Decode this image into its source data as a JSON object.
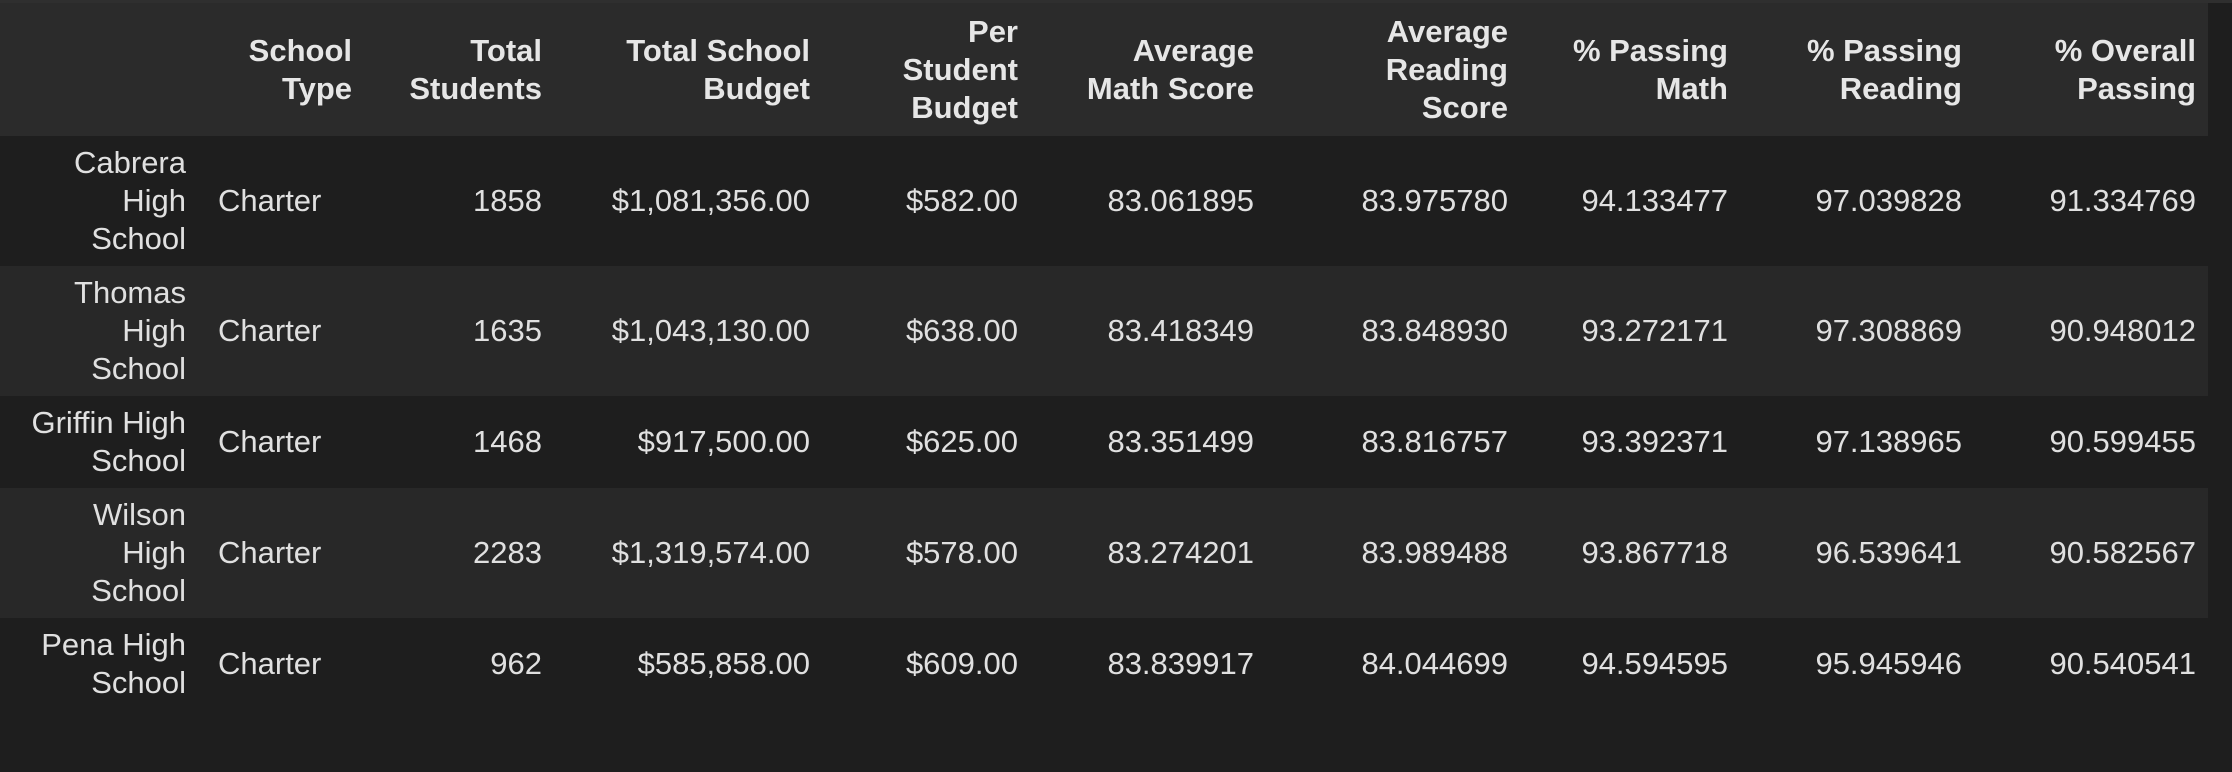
{
  "table": {
    "columns": [
      "",
      "School Type",
      "Total Students",
      "Total School Budget",
      "Per Student Budget",
      "Average Math Score",
      "Average Reading Score",
      "% Passing Math",
      "% Passing Reading",
      "% Overall Passing"
    ],
    "column_header_lines": [
      [
        ""
      ],
      [
        "School",
        "Type"
      ],
      [
        "Total",
        "Students"
      ],
      [
        "Total School",
        "Budget"
      ],
      [
        "Per",
        "Student",
        "Budget"
      ],
      [
        "Average",
        "Math Score"
      ],
      [
        "Average",
        "Reading",
        "Score"
      ],
      [
        "% Passing",
        "Math"
      ],
      [
        "% Passing",
        "Reading"
      ],
      [
        "% Overall",
        "Passing"
      ]
    ],
    "rows": [
      {
        "index_lines": [
          "Cabrera",
          "High",
          "School"
        ],
        "cells": [
          "Charter",
          "1858",
          "$1,081,356.00",
          "$582.00",
          "83.061895",
          "83.975780",
          "94.133477",
          "97.039828",
          "91.334769"
        ]
      },
      {
        "index_lines": [
          "Thomas",
          "High",
          "School"
        ],
        "cells": [
          "Charter",
          "1635",
          "$1,043,130.00",
          "$638.00",
          "83.418349",
          "83.848930",
          "93.272171",
          "97.308869",
          "90.948012"
        ]
      },
      {
        "index_lines": [
          "Griffin High",
          "School"
        ],
        "cells": [
          "Charter",
          "1468",
          "$917,500.00",
          "$625.00",
          "83.351499",
          "83.816757",
          "93.392371",
          "97.138965",
          "90.599455"
        ]
      },
      {
        "index_lines": [
          "Wilson",
          "High",
          "School"
        ],
        "cells": [
          "Charter",
          "2283",
          "$1,319,574.00",
          "$578.00",
          "83.274201",
          "83.989488",
          "93.867718",
          "96.539641",
          "90.582567"
        ]
      },
      {
        "index_lines": [
          "Pena High",
          "School"
        ],
        "cells": [
          "Charter",
          "962",
          "$585,858.00",
          "$609.00",
          "83.839917",
          "84.044699",
          "94.594595",
          "95.945946",
          "90.540541"
        ]
      }
    ]
  },
  "colors": {
    "background": "#1e1e1e",
    "header_background": "#2b2b2b",
    "row_alt_background": "#282828",
    "text": "#e0e0e0"
  }
}
